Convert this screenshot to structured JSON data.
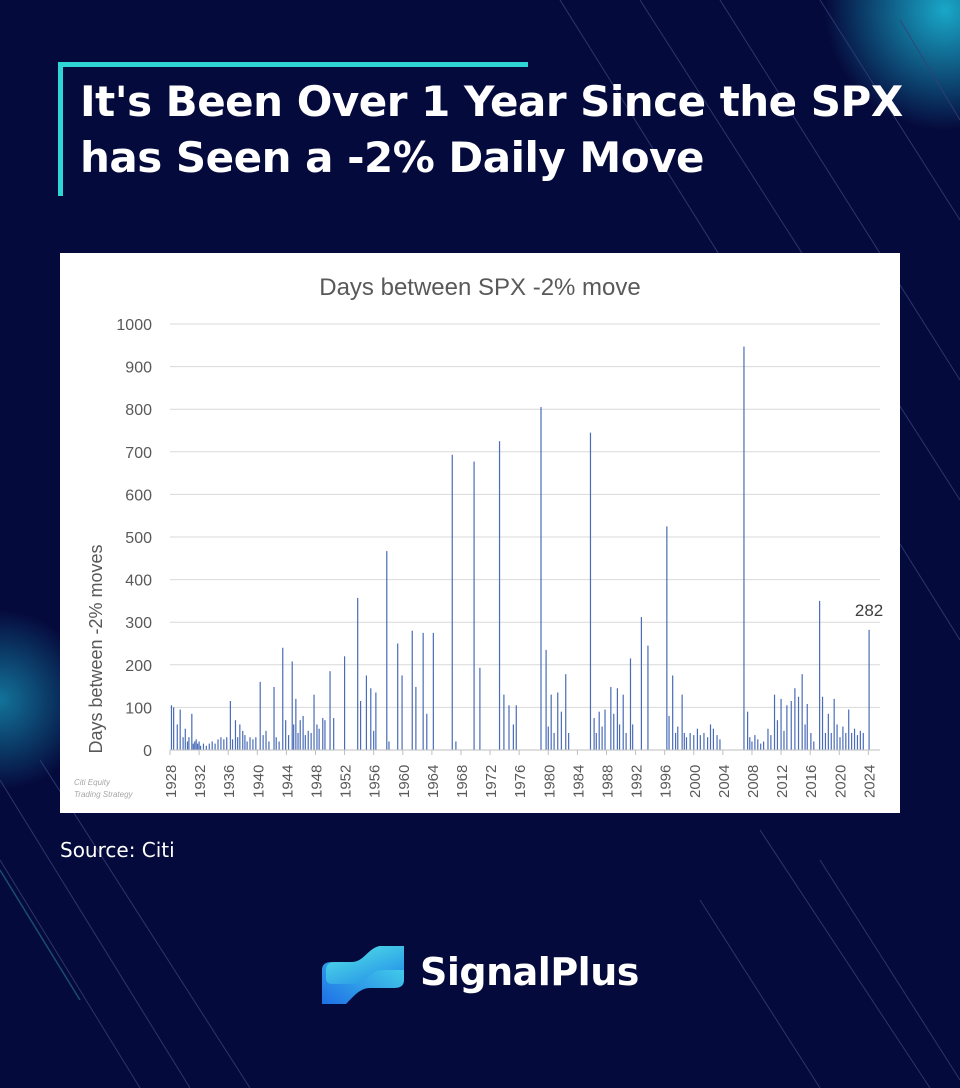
{
  "page": {
    "headline": "It's Been Over 1 Year Since the SPX has Seen a -2% Daily Move",
    "source": "Source: Citi",
    "brand": "SignalPlus",
    "colors": {
      "background": "#050a3c",
      "accent": "#2fd5d5",
      "bar": "#4a6cb7"
    },
    "icons": [
      "signalplus-logo-icon"
    ]
  },
  "chart_data": {
    "type": "bar",
    "title": "Days between SPX -2% move",
    "ylabel": "Days between -2% moves",
    "xlabel": "",
    "watermark": [
      "Citi Equity",
      "Trading Strategy"
    ],
    "ylim": [
      0,
      1000
    ],
    "yticks": [
      0,
      100,
      200,
      300,
      400,
      500,
      600,
      700,
      800,
      900,
      1000
    ],
    "xlim": [
      1928,
      2025.6
    ],
    "xticks": [
      1928,
      1932,
      1936,
      1940,
      1944,
      1948,
      1952,
      1956,
      1960,
      1964,
      1968,
      1972,
      1976,
      1980,
      1984,
      1988,
      1992,
      1996,
      2000,
      2004,
      2008,
      2012,
      2016,
      2020,
      2024
    ],
    "grid": true,
    "legend": "none",
    "annotation": {
      "x": 2024.1,
      "y": 282,
      "text": "282"
    },
    "points": [
      [
        1928.2,
        105
      ],
      [
        1928.5,
        100
      ],
      [
        1929.0,
        60
      ],
      [
        1929.4,
        95
      ],
      [
        1929.8,
        30
      ],
      [
        1930.1,
        50
      ],
      [
        1930.4,
        20
      ],
      [
        1930.6,
        30
      ],
      [
        1931.0,
        85
      ],
      [
        1931.2,
        15
      ],
      [
        1931.4,
        20
      ],
      [
        1931.6,
        25
      ],
      [
        1931.8,
        15
      ],
      [
        1932.0,
        20
      ],
      [
        1932.2,
        10
      ],
      [
        1932.6,
        15
      ],
      [
        1933.0,
        10
      ],
      [
        1933.4,
        15
      ],
      [
        1933.8,
        20
      ],
      [
        1934.2,
        15
      ],
      [
        1934.6,
        25
      ],
      [
        1935.0,
        30
      ],
      [
        1935.4,
        25
      ],
      [
        1935.8,
        30
      ],
      [
        1936.3,
        115
      ],
      [
        1936.6,
        25
      ],
      [
        1937.0,
        70
      ],
      [
        1937.3,
        30
      ],
      [
        1937.6,
        60
      ],
      [
        1938.0,
        45
      ],
      [
        1938.3,
        35
      ],
      [
        1938.6,
        20
      ],
      [
        1939.0,
        30
      ],
      [
        1939.4,
        25
      ],
      [
        1939.8,
        30
      ],
      [
        1940.4,
        160
      ],
      [
        1940.8,
        35
      ],
      [
        1941.2,
        45
      ],
      [
        1941.6,
        20
      ],
      [
        1942.3,
        148
      ],
      [
        1942.6,
        30
      ],
      [
        1943.0,
        20
      ],
      [
        1943.5,
        240
      ],
      [
        1943.9,
        70
      ],
      [
        1944.3,
        35
      ],
      [
        1944.8,
        208
      ],
      [
        1945.0,
        60
      ],
      [
        1945.3,
        120
      ],
      [
        1945.6,
        40
      ],
      [
        1945.9,
        70
      ],
      [
        1946.3,
        80
      ],
      [
        1946.6,
        35
      ],
      [
        1947.0,
        45
      ],
      [
        1947.4,
        40
      ],
      [
        1947.8,
        130
      ],
      [
        1948.2,
        60
      ],
      [
        1948.5,
        50
      ],
      [
        1949.0,
        75
      ],
      [
        1949.3,
        70
      ],
      [
        1950.0,
        185
      ],
      [
        1950.5,
        75
      ],
      [
        1952.0,
        220
      ],
      [
        1953.8,
        357
      ],
      [
        1954.2,
        115
      ],
      [
        1955.0,
        175
      ],
      [
        1955.6,
        145
      ],
      [
        1956.0,
        45
      ],
      [
        1956.3,
        135
      ],
      [
        1957.8,
        467
      ],
      [
        1958.1,
        20
      ],
      [
        1959.3,
        250
      ],
      [
        1959.9,
        175
      ],
      [
        1961.3,
        280
      ],
      [
        1961.8,
        148
      ],
      [
        1962.8,
        275
      ],
      [
        1963.3,
        85
      ],
      [
        1964.2,
        275
      ],
      [
        1966.8,
        693
      ],
      [
        1967.3,
        20
      ],
      [
        1969.8,
        677
      ],
      [
        1970.6,
        193
      ],
      [
        1973.3,
        725
      ],
      [
        1973.9,
        130
      ],
      [
        1974.6,
        105
      ],
      [
        1975.2,
        60
      ],
      [
        1975.6,
        105
      ],
      [
        1979.0,
        805
      ],
      [
        1979.7,
        235
      ],
      [
        1980.0,
        55
      ],
      [
        1980.4,
        130
      ],
      [
        1980.8,
        40
      ],
      [
        1981.3,
        135
      ],
      [
        1981.8,
        90
      ],
      [
        1982.4,
        178
      ],
      [
        1982.8,
        40
      ],
      [
        1985.8,
        745
      ],
      [
        1986.3,
        75
      ],
      [
        1986.6,
        40
      ],
      [
        1987.0,
        90
      ],
      [
        1987.4,
        55
      ],
      [
        1987.8,
        95
      ],
      [
        1988.6,
        148
      ],
      [
        1989.0,
        85
      ],
      [
        1989.5,
        145
      ],
      [
        1989.8,
        60
      ],
      [
        1990.3,
        130
      ],
      [
        1990.7,
        40
      ],
      [
        1991.3,
        215
      ],
      [
        1991.6,
        60
      ],
      [
        1992.8,
        312
      ],
      [
        1993.7,
        245
      ],
      [
        1996.3,
        525
      ],
      [
        1996.6,
        80
      ],
      [
        1997.1,
        175
      ],
      [
        1997.5,
        40
      ],
      [
        1997.8,
        55
      ],
      [
        1998.4,
        130
      ],
      [
        1998.7,
        40
      ],
      [
        1999.0,
        30
      ],
      [
        1999.5,
        40
      ],
      [
        2000.0,
        35
      ],
      [
        2000.5,
        50
      ],
      [
        2000.9,
        35
      ],
      [
        2001.4,
        40
      ],
      [
        2001.9,
        30
      ],
      [
        2002.3,
        60
      ],
      [
        2002.7,
        50
      ],
      [
        2003.2,
        35
      ],
      [
        2003.6,
        25
      ],
      [
        2006.9,
        947
      ],
      [
        2007.4,
        90
      ],
      [
        2007.7,
        30
      ],
      [
        2008.0,
        20
      ],
      [
        2008.4,
        35
      ],
      [
        2008.8,
        25
      ],
      [
        2009.2,
        15
      ],
      [
        2009.6,
        20
      ],
      [
        2010.2,
        50
      ],
      [
        2010.6,
        35
      ],
      [
        2011.1,
        130
      ],
      [
        2011.5,
        70
      ],
      [
        2012.0,
        120
      ],
      [
        2012.4,
        45
      ],
      [
        2012.8,
        105
      ],
      [
        2013.4,
        115
      ],
      [
        2013.9,
        145
      ],
      [
        2014.4,
        125
      ],
      [
        2014.9,
        178
      ],
      [
        2015.3,
        60
      ],
      [
        2015.6,
        108
      ],
      [
        2016.1,
        40
      ],
      [
        2016.5,
        20
      ],
      [
        2017.3,
        350
      ],
      [
        2017.7,
        125
      ],
      [
        2018.1,
        40
      ],
      [
        2018.5,
        85
      ],
      [
        2018.9,
        40
      ],
      [
        2019.3,
        120
      ],
      [
        2019.7,
        60
      ],
      [
        2020.1,
        30
      ],
      [
        2020.5,
        55
      ],
      [
        2020.9,
        40
      ],
      [
        2021.3,
        95
      ],
      [
        2021.7,
        40
      ],
      [
        2022.1,
        50
      ],
      [
        2022.5,
        35
      ],
      [
        2022.9,
        45
      ],
      [
        2023.3,
        40
      ],
      [
        2024.1,
        282
      ]
    ]
  }
}
